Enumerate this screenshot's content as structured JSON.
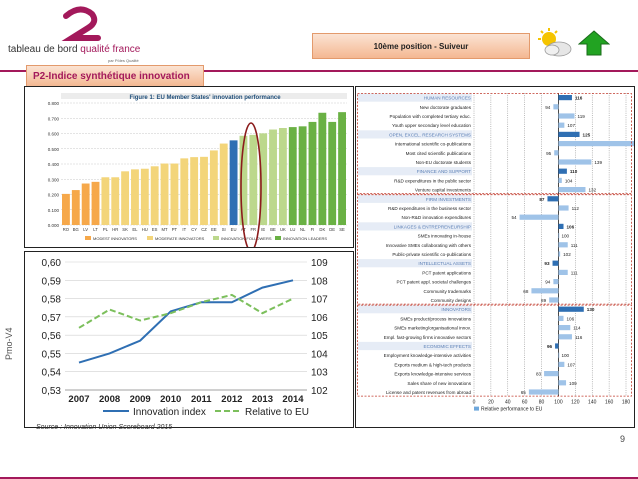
{
  "header": {
    "brand_part1": "tableau de bord ",
    "brand_part2": "qualité france",
    "brand_sub": "par Pôles Qualité",
    "position": "10ème position - Suiveur"
  },
  "section_title": "P2-Indice synthétique innovation",
  "side_label": "Pmo-V4",
  "source": "Source : Innovation Union Scoreboard 2015",
  "page_number": "9",
  "colors": {
    "accent": "#a3195b",
    "box": "#f4b892"
  },
  "icons": [
    "sun-cloud-icon",
    "up-arrow-icon"
  ],
  "chart_data": [
    {
      "type": "bar",
      "title": "Figure 1: EU Member States' innovation performance",
      "categories": [
        "RO",
        "BG",
        "LV",
        "LT",
        "PL",
        "HR",
        "SK",
        "EL",
        "HU",
        "ES",
        "MT",
        "PT",
        "IT",
        "CY",
        "CZ",
        "EE",
        "SI",
        "EU",
        "AT",
        "FR",
        "IE",
        "BE",
        "UK",
        "LU",
        "NL",
        "FI",
        "DK",
        "DE",
        "SE"
      ],
      "values": [
        0.204,
        0.229,
        0.272,
        0.283,
        0.313,
        0.313,
        0.352,
        0.365,
        0.369,
        0.385,
        0.403,
        0.403,
        0.437,
        0.445,
        0.447,
        0.489,
        0.534,
        0.555,
        0.585,
        0.591,
        0.601,
        0.626,
        0.636,
        0.642,
        0.647,
        0.676,
        0.736,
        0.676,
        0.74
      ],
      "ylim": [
        0,
        0.8
      ],
      "yticks": [
        "0.000",
        "0.050",
        "0.100",
        "0.150",
        "0.200",
        "0.250",
        "0.300",
        "0.350",
        "0.400",
        "0.450",
        "0.500",
        "0.550",
        "0.600",
        "0.650",
        "0.700",
        "0.750",
        "0.800"
      ],
      "legend": [
        "MODEST INNOVATORS",
        "MODERATE INNOVATORS",
        "INNOVATION FOLLOWERS",
        "INNOVATION LEADERS"
      ]
    },
    {
      "type": "line",
      "x": [
        "2007",
        "2008",
        "2009",
        "2010",
        "2011",
        "2012",
        "2013",
        "2014"
      ],
      "series": [
        {
          "name": "Innovation index",
          "values": [
            0.545,
            0.55,
            0.557,
            0.573,
            0.578,
            0.578,
            0.586,
            0.59
          ]
        },
        {
          "name": "Relative to EU",
          "values": [
            105.4,
            106.4,
            105.8,
            106.2,
            106.8,
            107.2,
            106.2,
            107.0
          ]
        }
      ],
      "ylim_left": [
        0.53,
        0.6
      ],
      "ylim_right": [
        102,
        109
      ],
      "yticks_left": [
        "0,53",
        "0,54",
        "0,55",
        "0,56",
        "0,57",
        "0,58",
        "0,59",
        "0,60"
      ],
      "yticks_right": [
        "102",
        "103",
        "104",
        "105",
        "106",
        "107",
        "108",
        "109"
      ]
    },
    {
      "type": "bar",
      "xlabel": "Relative performance to EU",
      "xticks": [
        "0",
        "20",
        "40",
        "60",
        "80",
        "100",
        "120",
        "140",
        "160",
        "180"
      ],
      "items": [
        {
          "label": "HUMAN RESOURCES",
          "value": 116,
          "header": true
        },
        {
          "label": "New doctorate graduates",
          "value": 94
        },
        {
          "label": "Population with completed tertiary educ.",
          "value": 119
        },
        {
          "label": "Youth upper secondary level education",
          "value": 107
        },
        {
          "label": "OPEN, EXCEL. RESEARCH SYSTEMS",
          "value": 125,
          "header": true
        },
        {
          "label": "International scientific co-publications",
          "value": 205
        },
        {
          "label": "Most cited scientific publications",
          "value": 95
        },
        {
          "label": "Non-EU doctorate students",
          "value": 139
        },
        {
          "label": "FINANCE AND SUPPORT",
          "value": 110,
          "header": true
        },
        {
          "label": "R&D expenditures in the public sector",
          "value": 104
        },
        {
          "label": "Venture capital investments",
          "value": 132
        },
        {
          "label": "FIRM INVESTMENTS",
          "value": 87,
          "header": true
        },
        {
          "label": "R&D expenditures in the business sector",
          "value": 112
        },
        {
          "label": "Non-R&D innovation expenditures",
          "value": 54
        },
        {
          "label": "LINKAGES & ENTREPRENEURSHIP",
          "value": 106,
          "header": true
        },
        {
          "label": "SMEs innovating in-house",
          "value": 100
        },
        {
          "label": "Innovative SMEs collaborating with others",
          "value": 111
        },
        {
          "label": "Public-private scientific co-publications",
          "value": 102
        },
        {
          "label": "INTELLECTUAL ASSETS",
          "value": 93,
          "header": true
        },
        {
          "label": "PCT patent applications",
          "value": 111
        },
        {
          "label": "PCT patent appl. societal challenges",
          "value": 94
        },
        {
          "label": "Community trademarks",
          "value": 68
        },
        {
          "label": "Community designs",
          "value": 89
        },
        {
          "label": "INNOVATORS",
          "value": 130,
          "header": true
        },
        {
          "label": "SMEs product/process innovations",
          "value": 106
        },
        {
          "label": "SMEs marketing/organisational innov.",
          "value": 114
        },
        {
          "label": "Empl. fast-growing firms innovative sectors",
          "value": 116
        },
        {
          "label": "ECONOMIC EFFECTS",
          "value": 96,
          "header": true
        },
        {
          "label": "Employment knowledge-intensive activities",
          "value": 100
        },
        {
          "label": "Exports medium & high-tech products",
          "value": 107
        },
        {
          "label": "Exports knowledge-intensive services",
          "value": 83
        },
        {
          "label": "Sales share of new innovations",
          "value": 109
        },
        {
          "label": "License and patent revenues from abroad",
          "value": 65
        }
      ]
    }
  ]
}
